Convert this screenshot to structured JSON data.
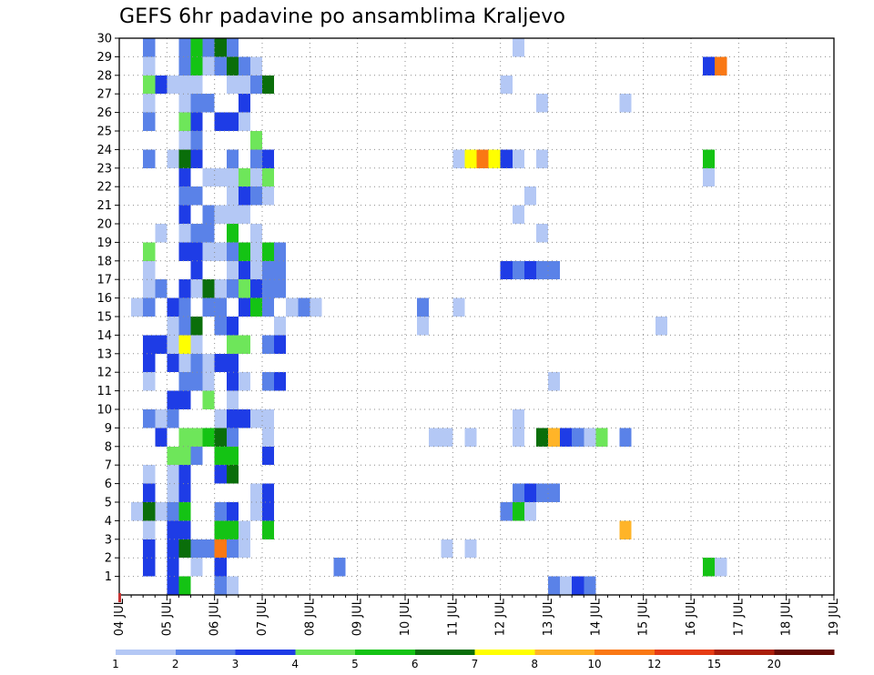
{
  "chart_data": {
    "type": "heatmap",
    "title": "GEFS 6hr padavine po ansamblima Kraljevo",
    "x_tick_labels": [
      "04 JUL",
      "05 JUL",
      "06 JUL",
      "07 JUL",
      "08 JUL",
      "09 JUL",
      "10 JUL",
      "11 JUL",
      "12 JUL",
      "13 JUL",
      "14 JUL",
      "15 JUL",
      "16 JUL",
      "17 JUL",
      "18 JUL",
      "19 JUL"
    ],
    "x_range_days": [
      0,
      15
    ],
    "x_step_hours": 6,
    "y_ticks": [
      1,
      2,
      3,
      4,
      5,
      6,
      7,
      8,
      9,
      10,
      11,
      12,
      13,
      14,
      15,
      16,
      17,
      18,
      19,
      20,
      21,
      22,
      23,
      24,
      25,
      26,
      27,
      28,
      29,
      30
    ],
    "y_range": [
      0,
      30
    ],
    "grid": true,
    "legend_position": "bottom",
    "legend": {
      "labels": [
        "1",
        "2",
        "3",
        "4",
        "5",
        "6",
        "7",
        "8",
        "10",
        "12",
        "15",
        "20"
      ],
      "colors": [
        "#b4c8f5",
        "#5a82e8",
        "#1e3ce6",
        "#6ee65a",
        "#14c314",
        "#0a6e0a",
        "#ffff00",
        "#ffb428",
        "#fa7814",
        "#e63c14",
        "#aa1e0a",
        "#640a05"
      ]
    },
    "cells_note": "each row: [member, hour offset from 04 JUL 00z, color class 1-12]",
    "cells": [
      [
        30,
        12,
        3
      ],
      [
        30,
        30,
        1
      ],
      [
        30,
        36,
        4
      ],
      [
        30,
        42,
        3
      ],
      [
        30,
        48,
        7
      ],
      [
        30,
        54,
        3
      ],
      [
        30,
        60,
        1
      ],
      [
        29,
        12,
        2
      ],
      [
        29,
        30,
        2
      ],
      [
        29,
        36,
        5
      ],
      [
        29,
        42,
        2
      ],
      [
        29,
        48,
        6
      ],
      [
        29,
        54,
        2
      ],
      [
        29,
        198,
        1
      ],
      [
        28,
        12,
        1
      ],
      [
        28,
        30,
        2
      ],
      [
        28,
        36,
        5
      ],
      [
        28,
        42,
        1
      ],
      [
        28,
        48,
        2
      ],
      [
        28,
        54,
        6
      ],
      [
        28,
        60,
        2
      ],
      [
        28,
        66,
        1
      ],
      [
        28,
        294,
        3
      ],
      [
        28,
        300,
        9
      ],
      [
        27,
        12,
        4
      ],
      [
        27,
        18,
        3
      ],
      [
        27,
        24,
        1
      ],
      [
        27,
        30,
        1
      ],
      [
        27,
        36,
        1
      ],
      [
        27,
        54,
        1
      ],
      [
        27,
        60,
        1
      ],
      [
        27,
        66,
        2
      ],
      [
        27,
        72,
        6
      ],
      [
        27,
        192,
        1
      ],
      [
        26,
        12,
        1
      ],
      [
        26,
        30,
        1
      ],
      [
        26,
        36,
        2
      ],
      [
        26,
        42,
        2
      ],
      [
        26,
        60,
        3
      ],
      [
        26,
        210,
        1
      ],
      [
        26,
        252,
        1
      ],
      [
        25,
        12,
        2
      ],
      [
        25,
        30,
        4
      ],
      [
        25,
        36,
        3
      ],
      [
        25,
        48,
        3
      ],
      [
        25,
        54,
        3
      ],
      [
        25,
        60,
        1
      ],
      [
        24,
        30,
        1
      ],
      [
        24,
        36,
        2
      ],
      [
        24,
        66,
        4
      ],
      [
        23,
        12,
        2
      ],
      [
        23,
        24,
        1
      ],
      [
        23,
        30,
        6
      ],
      [
        23,
        36,
        3
      ],
      [
        23,
        54,
        2
      ],
      [
        23,
        66,
        2
      ],
      [
        23,
        72,
        3
      ],
      [
        23,
        168,
        1
      ],
      [
        23,
        174,
        7
      ],
      [
        23,
        180,
        9
      ],
      [
        23,
        186,
        7
      ],
      [
        23,
        192,
        3
      ],
      [
        23,
        198,
        1
      ],
      [
        23,
        210,
        1
      ],
      [
        23,
        294,
        5
      ],
      [
        22,
        30,
        3
      ],
      [
        22,
        42,
        1
      ],
      [
        22,
        48,
        1
      ],
      [
        22,
        54,
        1
      ],
      [
        22,
        60,
        4
      ],
      [
        22,
        66,
        1
      ],
      [
        22,
        72,
        4
      ],
      [
        22,
        294,
        1
      ],
      [
        21,
        30,
        2
      ],
      [
        21,
        36,
        2
      ],
      [
        21,
        54,
        1
      ],
      [
        21,
        60,
        3
      ],
      [
        21,
        66,
        2
      ],
      [
        21,
        72,
        1
      ],
      [
        21,
        204,
        1
      ],
      [
        20,
        30,
        3
      ],
      [
        20,
        42,
        2
      ],
      [
        20,
        48,
        1
      ],
      [
        20,
        54,
        1
      ],
      [
        20,
        60,
        1
      ],
      [
        20,
        198,
        1
      ],
      [
        19,
        18,
        1
      ],
      [
        19,
        30,
        1
      ],
      [
        19,
        36,
        2
      ],
      [
        19,
        42,
        2
      ],
      [
        19,
        54,
        5
      ],
      [
        19,
        66,
        1
      ],
      [
        19,
        210,
        1
      ],
      [
        18,
        12,
        4
      ],
      [
        18,
        30,
        3
      ],
      [
        18,
        36,
        3
      ],
      [
        18,
        42,
        1
      ],
      [
        18,
        48,
        1
      ],
      [
        18,
        54,
        2
      ],
      [
        18,
        60,
        5
      ],
      [
        18,
        66,
        1
      ],
      [
        18,
        72,
        5
      ],
      [
        18,
        78,
        2
      ],
      [
        17,
        12,
        1
      ],
      [
        17,
        36,
        3
      ],
      [
        17,
        54,
        1
      ],
      [
        17,
        60,
        3
      ],
      [
        17,
        66,
        1
      ],
      [
        17,
        72,
        2
      ],
      [
        17,
        78,
        2
      ],
      [
        17,
        192,
        3
      ],
      [
        17,
        198,
        2
      ],
      [
        17,
        204,
        3
      ],
      [
        17,
        210,
        2
      ],
      [
        17,
        216,
        2
      ],
      [
        16,
        12,
        1
      ],
      [
        16,
        18,
        2
      ],
      [
        16,
        30,
        3
      ],
      [
        16,
        36,
        1
      ],
      [
        16,
        42,
        6
      ],
      [
        16,
        48,
        1
      ],
      [
        16,
        54,
        2
      ],
      [
        16,
        60,
        4
      ],
      [
        16,
        66,
        3
      ],
      [
        16,
        72,
        2
      ],
      [
        16,
        78,
        2
      ],
      [
        15,
        6,
        1
      ],
      [
        15,
        12,
        2
      ],
      [
        15,
        24,
        3
      ],
      [
        15,
        30,
        2
      ],
      [
        15,
        42,
        2
      ],
      [
        15,
        48,
        2
      ],
      [
        15,
        60,
        3
      ],
      [
        15,
        66,
        5
      ],
      [
        15,
        72,
        2
      ],
      [
        15,
        84,
        1
      ],
      [
        15,
        90,
        2
      ],
      [
        15,
        96,
        1
      ],
      [
        15,
        150,
        2
      ],
      [
        15,
        168,
        1
      ],
      [
        14,
        24,
        1
      ],
      [
        14,
        30,
        2
      ],
      [
        14,
        36,
        6
      ],
      [
        14,
        48,
        2
      ],
      [
        14,
        54,
        3
      ],
      [
        14,
        78,
        1
      ],
      [
        14,
        150,
        1
      ],
      [
        14,
        270,
        1
      ],
      [
        13,
        12,
        3
      ],
      [
        13,
        18,
        3
      ],
      [
        13,
        24,
        1
      ],
      [
        13,
        30,
        7
      ],
      [
        13,
        36,
        1
      ],
      [
        13,
        54,
        4
      ],
      [
        13,
        60,
        4
      ],
      [
        13,
        72,
        2
      ],
      [
        13,
        78,
        3
      ],
      [
        12,
        12,
        3
      ],
      [
        12,
        24,
        3
      ],
      [
        12,
        30,
        1
      ],
      [
        12,
        36,
        2
      ],
      [
        12,
        42,
        1
      ],
      [
        12,
        48,
        3
      ],
      [
        12,
        54,
        3
      ],
      [
        11,
        12,
        1
      ],
      [
        11,
        30,
        2
      ],
      [
        11,
        36,
        2
      ],
      [
        11,
        42,
        1
      ],
      [
        11,
        54,
        3
      ],
      [
        11,
        60,
        1
      ],
      [
        11,
        72,
        2
      ],
      [
        11,
        78,
        3
      ],
      [
        11,
        216,
        1
      ],
      [
        10,
        24,
        3
      ],
      [
        10,
        30,
        3
      ],
      [
        10,
        42,
        4
      ],
      [
        10,
        54,
        1
      ],
      [
        9,
        12,
        2
      ],
      [
        9,
        18,
        1
      ],
      [
        9,
        24,
        2
      ],
      [
        9,
        48,
        1
      ],
      [
        9,
        54,
        3
      ],
      [
        9,
        60,
        3
      ],
      [
        9,
        66,
        1
      ],
      [
        9,
        72,
        1
      ],
      [
        9,
        198,
        1
      ],
      [
        8,
        18,
        3
      ],
      [
        8,
        30,
        4
      ],
      [
        8,
        36,
        4
      ],
      [
        8,
        42,
        5
      ],
      [
        8,
        48,
        6
      ],
      [
        8,
        54,
        2
      ],
      [
        8,
        72,
        1
      ],
      [
        8,
        156,
        1
      ],
      [
        8,
        162,
        1
      ],
      [
        8,
        174,
        1
      ],
      [
        8,
        198,
        1
      ],
      [
        8,
        210,
        6
      ],
      [
        8,
        216,
        8
      ],
      [
        8,
        222,
        3
      ],
      [
        8,
        228,
        2
      ],
      [
        8,
        234,
        1
      ],
      [
        8,
        240,
        4
      ],
      [
        8,
        252,
        2
      ],
      [
        7,
        24,
        4
      ],
      [
        7,
        30,
        4
      ],
      [
        7,
        36,
        2
      ],
      [
        7,
        48,
        5
      ],
      [
        7,
        54,
        5
      ],
      [
        7,
        72,
        3
      ],
      [
        6,
        12,
        1
      ],
      [
        6,
        24,
        1
      ],
      [
        6,
        30,
        3
      ],
      [
        6,
        48,
        3
      ],
      [
        6,
        54,
        6
      ],
      [
        5,
        12,
        3
      ],
      [
        5,
        24,
        1
      ],
      [
        5,
        30,
        3
      ],
      [
        5,
        66,
        1
      ],
      [
        5,
        72,
        3
      ],
      [
        5,
        198,
        2
      ],
      [
        5,
        204,
        3
      ],
      [
        5,
        210,
        2
      ],
      [
        5,
        216,
        2
      ],
      [
        4,
        6,
        1
      ],
      [
        4,
        12,
        6
      ],
      [
        4,
        18,
        1
      ],
      [
        4,
        24,
        2
      ],
      [
        4,
        30,
        5
      ],
      [
        4,
        48,
        2
      ],
      [
        4,
        54,
        3
      ],
      [
        4,
        66,
        1
      ],
      [
        4,
        72,
        3
      ],
      [
        4,
        192,
        2
      ],
      [
        4,
        198,
        5
      ],
      [
        4,
        204,
        1
      ],
      [
        3,
        12,
        1
      ],
      [
        3,
        24,
        3
      ],
      [
        3,
        30,
        3
      ],
      [
        3,
        48,
        5
      ],
      [
        3,
        54,
        5
      ],
      [
        3,
        60,
        1
      ],
      [
        3,
        72,
        5
      ],
      [
        3,
        252,
        8
      ],
      [
        2,
        12,
        3
      ],
      [
        2,
        24,
        3
      ],
      [
        2,
        30,
        6
      ],
      [
        2,
        36,
        2
      ],
      [
        2,
        42,
        2
      ],
      [
        2,
        48,
        9
      ],
      [
        2,
        54,
        2
      ],
      [
        2,
        60,
        1
      ],
      [
        2,
        162,
        1
      ],
      [
        2,
        174,
        1
      ],
      [
        1,
        12,
        3
      ],
      [
        1,
        24,
        3
      ],
      [
        1,
        36,
        1
      ],
      [
        1,
        48,
        3
      ],
      [
        1,
        108,
        2
      ],
      [
        1,
        294,
        5
      ],
      [
        1,
        300,
        1
      ],
      [
        0,
        24,
        3
      ],
      [
        0,
        30,
        5
      ],
      [
        0,
        48,
        2
      ],
      [
        0,
        54,
        1
      ],
      [
        0,
        216,
        2
      ],
      [
        0,
        222,
        1
      ],
      [
        0,
        228,
        3
      ],
      [
        0,
        234,
        2
      ]
    ]
  }
}
